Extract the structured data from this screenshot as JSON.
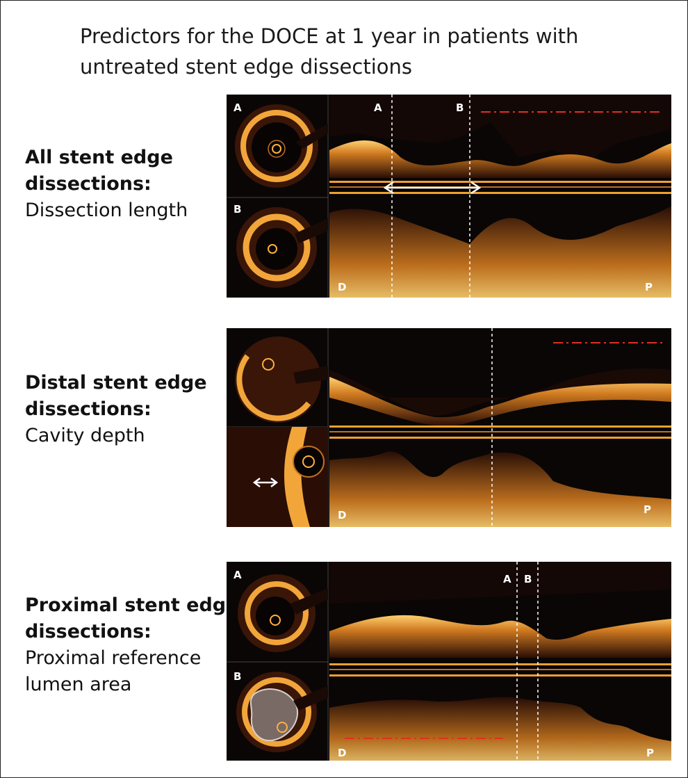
{
  "title": "Predictors for the DOCE at 1 year in patients with\nuntreated stent edge dissections",
  "sections": [
    {
      "heading_lines": [
        "All stent edge",
        "dissections:"
      ],
      "predictor_lines": [
        "Dissection length"
      ],
      "image_labels": {
        "cross_top": "A",
        "cross_bottom": "B",
        "long_marker_1": "A",
        "long_marker_2": "B",
        "distal": "D",
        "proximal": "P"
      }
    },
    {
      "heading_lines": [
        "Distal stent edge",
        "dissections:"
      ],
      "predictor_lines": [
        "Cavity depth"
      ],
      "image_labels": {
        "distal": "D",
        "proximal": "P"
      }
    },
    {
      "heading_lines": [
        "Proximal stent edge",
        "dissections:"
      ],
      "predictor_lines": [
        "Proximal reference",
        "lumen area"
      ],
      "image_labels": {
        "cross_top": "A",
        "cross_bottom": "B",
        "long_marker_1": "A",
        "long_marker_2": "B",
        "distal": "D",
        "proximal": "P"
      }
    }
  ],
  "colors": {
    "oct_glow": "#f0a030",
    "oct_dark": "#0a0605",
    "reference_line": "#e03020",
    "marker_line": "#ffffff",
    "lumen_fill": "#7a6a66"
  }
}
